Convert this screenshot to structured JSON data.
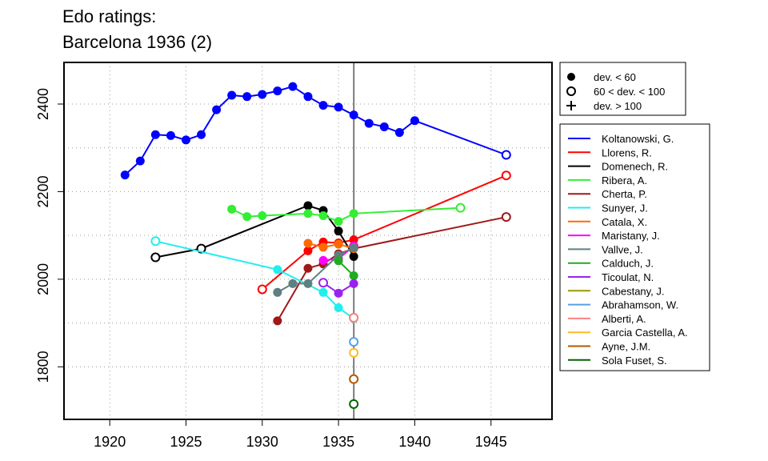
{
  "chart_data": {
    "type": "line",
    "title": [
      "Edo ratings:",
      "Barcelona 1936 (2)"
    ],
    "xlabel": "",
    "ylabel": "",
    "xlim": [
      1917,
      1949
    ],
    "ylim": [
      1680,
      2495
    ],
    "xticks": [
      1920,
      1925,
      1930,
      1935,
      1940,
      1945
    ],
    "yticks": [
      1800,
      2000,
      2200,
      2400
    ],
    "grid": true,
    "reference_line_x": 1936,
    "markers_legend": {
      "placement": "top-right-outside",
      "items": [
        {
          "label": "dev. < 60",
          "symbol": "filled-circle"
        },
        {
          "label": "60 < dev. < 100",
          "symbol": "open-circle"
        },
        {
          "label": "dev. > 100",
          "symbol": "plus"
        }
      ]
    },
    "legend_placement": "right-outside",
    "series": [
      {
        "name": "Koltanowski, G.",
        "color": "#0000ff",
        "points": [
          [
            1921,
            2238,
            "f"
          ],
          [
            1922,
            2270,
            "f"
          ],
          [
            1923,
            2330,
            "f"
          ],
          [
            1924,
            2328,
            "f"
          ],
          [
            1925,
            2318,
            "f"
          ],
          [
            1926,
            2330,
            "f"
          ],
          [
            1927,
            2387,
            "f"
          ],
          [
            1928,
            2420,
            "f"
          ],
          [
            1929,
            2417,
            "f"
          ],
          [
            1930,
            2422,
            "f"
          ],
          [
            1931,
            2430,
            "f"
          ],
          [
            1932,
            2440,
            "f"
          ],
          [
            1933,
            2417,
            "f"
          ],
          [
            1934,
            2397,
            "f"
          ],
          [
            1935,
            2393,
            "f"
          ],
          [
            1936,
            2375,
            "f"
          ],
          [
            1937,
            2356,
            "f"
          ],
          [
            1938,
            2348,
            "f"
          ],
          [
            1939,
            2335,
            "f"
          ],
          [
            1940,
            2362,
            "f"
          ],
          [
            1946,
            2284,
            "o"
          ]
        ]
      },
      {
        "name": "Llorens, R.",
        "color": "#ff0000",
        "points": [
          [
            1930,
            1977,
            "o"
          ],
          [
            1933,
            2065,
            "f"
          ],
          [
            1934,
            2085,
            "f"
          ],
          [
            1935,
            2083,
            "f"
          ],
          [
            1936,
            2090,
            "f"
          ],
          [
            1946,
            2237,
            "o"
          ]
        ]
      },
      {
        "name": "Domenech, R.",
        "color": "#000000",
        "points": [
          [
            1923,
            2050,
            "o"
          ],
          [
            1926,
            2070,
            "o"
          ],
          [
            1933,
            2168,
            "f"
          ],
          [
            1934,
            2157,
            "f"
          ],
          [
            1935,
            2110,
            "f"
          ],
          [
            1936,
            2052,
            "f"
          ]
        ]
      },
      {
        "name": "Ribera, A.",
        "color": "#33ee33",
        "points": [
          [
            1928,
            2160,
            "f"
          ],
          [
            1929,
            2143,
            "f"
          ],
          [
            1930,
            2145,
            "f"
          ],
          [
            1933,
            2150,
            "f"
          ],
          [
            1934,
            2145,
            "f"
          ],
          [
            1935,
            2132,
            "f"
          ],
          [
            1936,
            2150,
            "f"
          ],
          [
            1943,
            2163,
            "o"
          ]
        ]
      },
      {
        "name": "Cherta, P.",
        "color": "#a01818",
        "points": [
          [
            1931,
            1905,
            "f"
          ],
          [
            1933,
            2025,
            "f"
          ],
          [
            1934,
            2035,
            "f"
          ],
          [
            1935,
            2058,
            "f"
          ],
          [
            1936,
            2070,
            "f"
          ],
          [
            1946,
            2142,
            "o"
          ]
        ]
      },
      {
        "name": "Sunyer, J.",
        "color": "#22eeee",
        "points": [
          [
            1923,
            2087,
            "o"
          ],
          [
            1931,
            2022,
            "f"
          ],
          [
            1934,
            1970,
            "f"
          ],
          [
            1935,
            1935,
            "f"
          ],
          [
            1936,
            1910,
            "f"
          ]
        ]
      },
      {
        "name": "Catala, X.",
        "color": "#ff6a00",
        "points": [
          [
            1933,
            2082,
            "f"
          ],
          [
            1934,
            2073,
            "f"
          ],
          [
            1935,
            2080,
            "f"
          ],
          [
            1936,
            2070,
            "f"
          ]
        ]
      },
      {
        "name": "Maristany, J.",
        "color": "#ff00ff",
        "points": [
          [
            1934,
            2043,
            "f"
          ],
          [
            1935,
            2047,
            "f"
          ],
          [
            1936,
            2075,
            "o"
          ]
        ]
      },
      {
        "name": "Vallve, J.",
        "color": "#5f7f80",
        "points": [
          [
            1931,
            1970,
            "f"
          ],
          [
            1932,
            1990,
            "f"
          ],
          [
            1933,
            1990,
            "f"
          ],
          [
            1935,
            2055,
            "f"
          ],
          [
            1936,
            2072,
            "f"
          ]
        ]
      },
      {
        "name": "Calduch, J.",
        "color": "#22aa22",
        "points": [
          [
            1935,
            2042,
            "f"
          ],
          [
            1936,
            2008,
            "f"
          ]
        ]
      },
      {
        "name": "Ticoulat, N.",
        "color": "#9a22ee",
        "points": [
          [
            1934,
            1992,
            "o"
          ],
          [
            1935,
            1968,
            "f"
          ],
          [
            1936,
            1990,
            "f"
          ]
        ]
      },
      {
        "name": "Cabestany, J.",
        "color": "#999900",
        "points": [
          [
            1936,
            1912,
            "o"
          ]
        ]
      },
      {
        "name": "Abrahamson, W.",
        "color": "#55a0e8",
        "points": [
          [
            1936,
            1857,
            "o"
          ]
        ]
      },
      {
        "name": "Alberti, A.",
        "color": "#ff8080",
        "points": [
          [
            1936,
            1912,
            "o"
          ]
        ]
      },
      {
        "name": "Garcia Castella, A.",
        "color": "#ffbb22",
        "points": [
          [
            1936,
            1832,
            "o"
          ]
        ]
      },
      {
        "name": "Ayne, J.M.",
        "color": "#b05a00",
        "points": [
          [
            1936,
            1772,
            "o"
          ]
        ]
      },
      {
        "name": "Sola Fuset, S.",
        "color": "#006400",
        "points": [
          [
            1936,
            1715,
            "o"
          ]
        ]
      }
    ]
  }
}
